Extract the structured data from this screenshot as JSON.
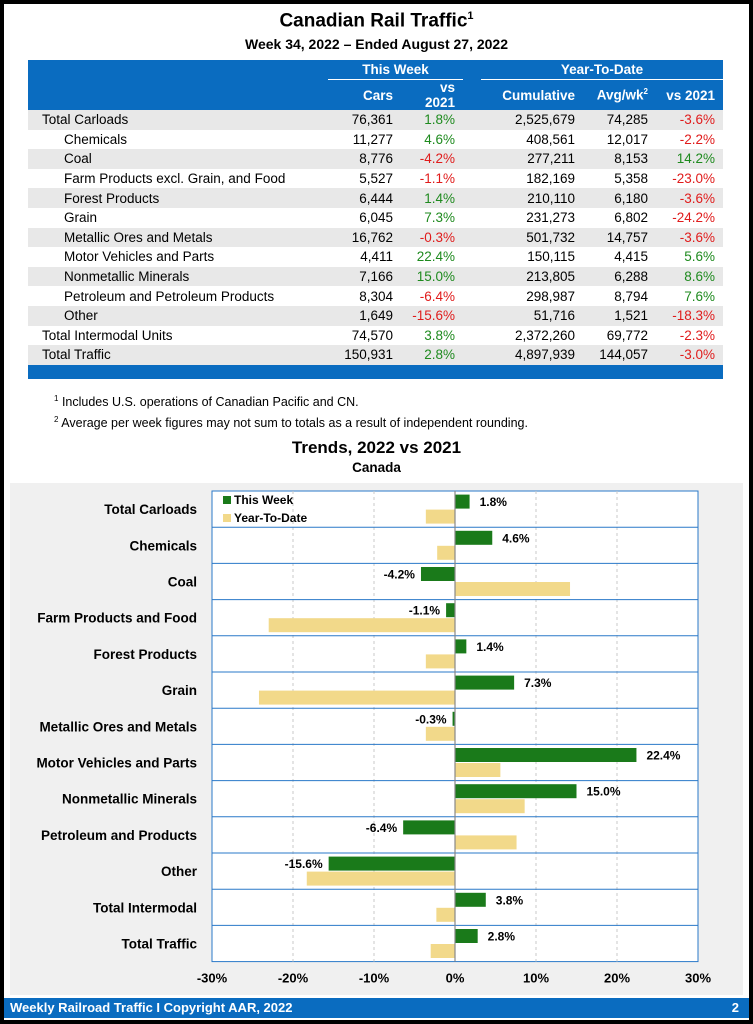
{
  "header": {
    "title": "Canadian Rail Traffic",
    "title_sup": "1",
    "subtitle": "Week 34, 2022 – Ended August 27, 2022"
  },
  "table": {
    "group_headers": [
      "This Week",
      "Year-To-Date"
    ],
    "columns": [
      "Cars",
      "vs 2021",
      "Cumulative",
      "Avg/wk",
      "vs 2021"
    ],
    "avg_sup": "2",
    "rows": [
      {
        "label": "Total Carloads",
        "type": "total",
        "cars": "76,361",
        "vs_week": "1.8%",
        "cumulative": "2,525,679",
        "avg_wk": "74,285",
        "vs_ytd": "-3.6%"
      },
      {
        "label": "Chemicals",
        "type": "sub",
        "cars": "11,277",
        "vs_week": "4.6%",
        "cumulative": "408,561",
        "avg_wk": "12,017",
        "vs_ytd": "-2.2%"
      },
      {
        "label": "Coal",
        "type": "sub",
        "cars": "8,776",
        "vs_week": "-4.2%",
        "cumulative": "277,211",
        "avg_wk": "8,153",
        "vs_ytd": "14.2%"
      },
      {
        "label": "Farm Products excl. Grain, and Food",
        "type": "sub",
        "cars": "5,527",
        "vs_week": "-1.1%",
        "cumulative": "182,169",
        "avg_wk": "5,358",
        "vs_ytd": "-23.0%"
      },
      {
        "label": "Forest Products",
        "type": "sub",
        "cars": "6,444",
        "vs_week": "1.4%",
        "cumulative": "210,110",
        "avg_wk": "6,180",
        "vs_ytd": "-3.6%"
      },
      {
        "label": "Grain",
        "type": "sub",
        "cars": "6,045",
        "vs_week": "7.3%",
        "cumulative": "231,273",
        "avg_wk": "6,802",
        "vs_ytd": "-24.2%"
      },
      {
        "label": "Metallic Ores and Metals",
        "type": "sub",
        "cars": "16,762",
        "vs_week": "-0.3%",
        "cumulative": "501,732",
        "avg_wk": "14,757",
        "vs_ytd": "-3.6%"
      },
      {
        "label": "Motor Vehicles and Parts",
        "type": "sub",
        "cars": "4,411",
        "vs_week": "22.4%",
        "cumulative": "150,115",
        "avg_wk": "4,415",
        "vs_ytd": "5.6%"
      },
      {
        "label": "Nonmetallic Minerals",
        "type": "sub",
        "cars": "7,166",
        "vs_week": "15.0%",
        "cumulative": "213,805",
        "avg_wk": "6,288",
        "vs_ytd": "8.6%"
      },
      {
        "label": "Petroleum and Petroleum Products",
        "type": "sub",
        "cars": "8,304",
        "vs_week": "-6.4%",
        "cumulative": "298,987",
        "avg_wk": "8,794",
        "vs_ytd": "7.6%"
      },
      {
        "label": "Other",
        "type": "sub",
        "cars": "1,649",
        "vs_week": "-15.6%",
        "cumulative": "51,716",
        "avg_wk": "1,521",
        "vs_ytd": "-18.3%"
      },
      {
        "label": "Total Intermodal Units",
        "type": "total",
        "cars": "74,570",
        "vs_week": "3.8%",
        "cumulative": "2,372,260",
        "avg_wk": "69,772",
        "vs_ytd": "-2.3%"
      },
      {
        "label": "Total Traffic",
        "type": "total",
        "cars": "150,931",
        "vs_week": "2.8%",
        "cumulative": "4,897,939",
        "avg_wk": "144,057",
        "vs_ytd": "-3.0%"
      }
    ]
  },
  "notes": [
    {
      "sup": "1",
      "text": "Includes U.S. operations of Canadian Pacific and CN."
    },
    {
      "sup": "2",
      "text": "Average per week figures may not sum to totals as a result of independent rounding."
    }
  ],
  "colors": {
    "brand_blue": "#0a6cc0",
    "positive": "#1e8a1e",
    "negative": "#e01b1b",
    "this_week_bar": "#1a7a1a",
    "ytd_bar": "#f2d98a"
  },
  "chart_data": {
    "type": "bar",
    "orientation": "horizontal",
    "title": "Trends, 2022 vs 2021",
    "subtitle": "Canada",
    "categories": [
      "Total Carloads",
      "Chemicals",
      "Coal",
      "Farm Products and Food",
      "Forest Products",
      "Grain",
      "Metallic Ores and Metals",
      "Motor Vehicles and Parts",
      "Nonmetallic Minerals",
      "Petroleum and Products",
      "Other",
      "Total Intermodal",
      "Total Traffic"
    ],
    "series": [
      {
        "name": "This Week",
        "values": [
          1.8,
          4.6,
          -4.2,
          -1.1,
          1.4,
          7.3,
          -0.3,
          22.4,
          15.0,
          -6.4,
          -15.6,
          3.8,
          2.8
        ],
        "labels": [
          "1.8%",
          "4.6%",
          "-4.2%",
          "-1.1%",
          "1.4%",
          "7.3%",
          "-0.3%",
          "22.4%",
          "15.0%",
          "-6.4%",
          "-15.6%",
          "3.8%",
          "2.8%"
        ]
      },
      {
        "name": "Year-To-Date",
        "values": [
          -3.6,
          -2.2,
          14.2,
          -23.0,
          -3.6,
          -24.2,
          -3.6,
          5.6,
          8.6,
          7.6,
          -18.3,
          -2.3,
          -3.0
        ]
      }
    ],
    "xlim": [
      -30,
      30
    ],
    "xticks": [
      -30,
      -20,
      -10,
      0,
      10,
      20,
      30
    ],
    "xtick_labels": [
      "-30%",
      "-20%",
      "-10%",
      "0%",
      "10%",
      "20%",
      "30%"
    ],
    "grid": true,
    "legend": "top-left"
  },
  "footer": {
    "left": "Weekly Railroad Traffic I Copyright AAR, 2022",
    "page": "2"
  }
}
